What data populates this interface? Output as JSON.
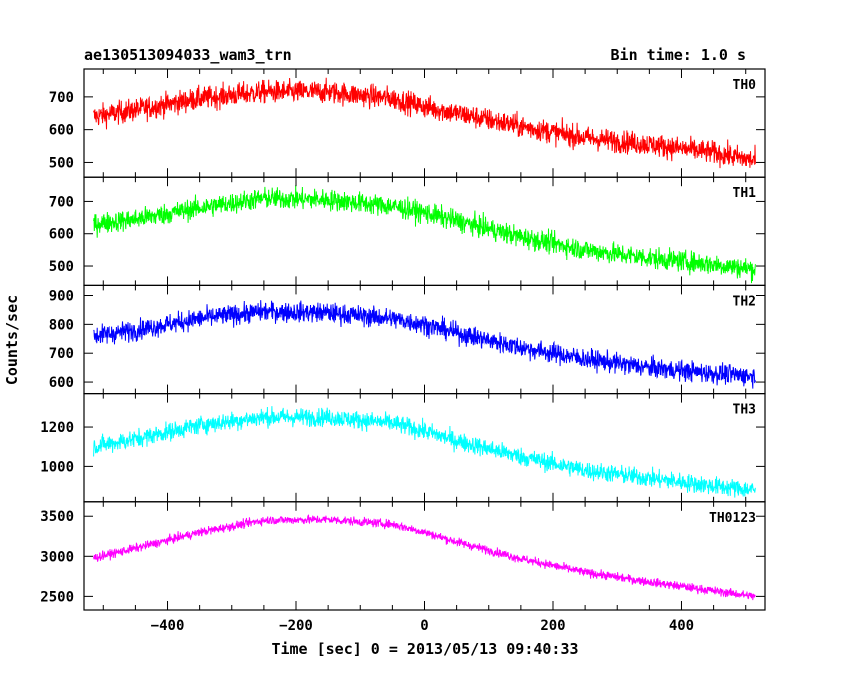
{
  "chart_data": {
    "type": "line",
    "title": "ae130513094033_wam3_trn",
    "bin_time": "Bin time: 1.0 s",
    "xlabel": "Time [sec] 0 = 2013/05/13 09:40:33",
    "ylabel": "Counts/sec",
    "xlim": [
      -530,
      530
    ],
    "xticks": [
      -400,
      -200,
      0,
      200,
      400
    ],
    "xtick_labels": [
      "−400",
      "−200",
      "0",
      "200",
      "400"
    ],
    "panels": [
      {
        "name": "TH0",
        "color": "#ff0000",
        "ylim": [
          455,
          785
        ],
        "yticks": [
          500,
          600,
          700
        ],
        "x": [
          -515,
          -450,
          -350,
          -250,
          -150,
          -50,
          0,
          50,
          150,
          250,
          350,
          450,
          515
        ],
        "y": [
          640,
          660,
          695,
          715,
          715,
          695,
          670,
          650,
          610,
          575,
          555,
          530,
          505
        ],
        "noise": 45
      },
      {
        "name": "TH1",
        "color": "#00ff00",
        "ylim": [
          440,
          775
        ],
        "yticks": [
          500,
          600,
          700
        ],
        "x": [
          -515,
          -450,
          -350,
          -250,
          -150,
          -50,
          0,
          50,
          150,
          250,
          350,
          450,
          515
        ],
        "y": [
          630,
          645,
          680,
          710,
          705,
          685,
          665,
          640,
          590,
          550,
          525,
          505,
          490
        ],
        "noise": 42
      },
      {
        "name": "TH2",
        "color": "#0000ff",
        "ylim": [
          560,
          935
        ],
        "yticks": [
          600,
          700,
          800,
          900
        ],
        "x": [
          -515,
          -450,
          -350,
          -250,
          -150,
          -50,
          0,
          50,
          150,
          250,
          350,
          450,
          515
        ],
        "y": [
          760,
          780,
          820,
          845,
          840,
          820,
          800,
          770,
          720,
          680,
          650,
          630,
          620
        ],
        "noise": 45
      },
      {
        "name": "TH3",
        "color": "#00ffff",
        "ylim": [
          820,
          1370
        ],
        "yticks": [
          1000,
          1200
        ],
        "x": [
          -515,
          -450,
          -350,
          -250,
          -150,
          -50,
          0,
          50,
          150,
          250,
          350,
          450,
          515
        ],
        "y": [
          1100,
          1140,
          1210,
          1250,
          1250,
          1220,
          1180,
          1130,
          1050,
          980,
          940,
          900,
          880
        ],
        "noise": 60
      },
      {
        "name": "TH0123",
        "color": "#ff00ff",
        "ylim": [
          2330,
          3680
        ],
        "yticks": [
          2500,
          3000,
          3500
        ],
        "x": [
          -515,
          -450,
          -350,
          -250,
          -150,
          -50,
          0,
          50,
          150,
          250,
          350,
          450,
          515
        ],
        "y": [
          2980,
          3100,
          3300,
          3450,
          3460,
          3400,
          3300,
          3180,
          2970,
          2800,
          2680,
          2570,
          2500
        ],
        "noise": 70
      }
    ]
  }
}
